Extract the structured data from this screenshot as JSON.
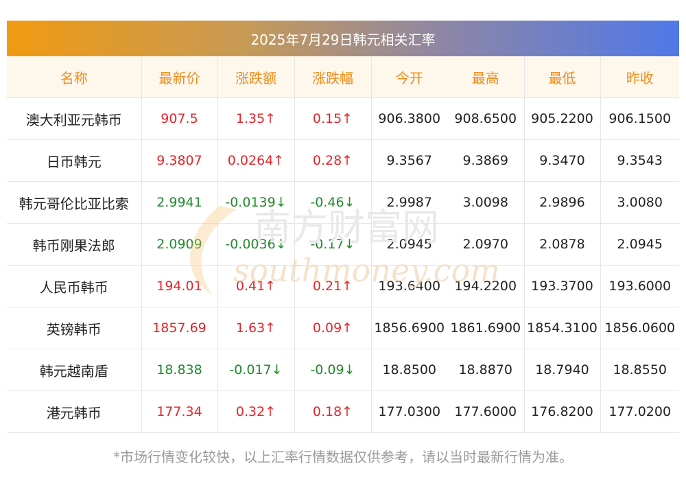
{
  "title": "2025年7月29日韩元相关汇率",
  "columns": [
    "名称",
    "最新价",
    "涨跌额",
    "涨跌幅",
    "今开",
    "最高",
    "最低",
    "昨收"
  ],
  "rows": [
    {
      "name": "澳大利亚元韩币",
      "latest": "907.5",
      "change": "1.35↑",
      "pct": "0.15↑",
      "open": "906.3800",
      "high": "908.6500",
      "low": "905.2200",
      "prev": "906.1500",
      "dir": "up"
    },
    {
      "name": "日币韩元",
      "latest": "9.3807",
      "change": "0.0264↑",
      "pct": "0.28↑",
      "open": "9.3567",
      "high": "9.3869",
      "low": "9.3470",
      "prev": "9.3543",
      "dir": "up"
    },
    {
      "name": "韩元哥伦比亚比索",
      "latest": "2.9941",
      "change": "-0.0139↓",
      "pct": "-0.46↓",
      "open": "2.9987",
      "high": "3.0098",
      "low": "2.9896",
      "prev": "3.0080",
      "dir": "down"
    },
    {
      "name": "韩币刚果法郎",
      "latest": "2.0909",
      "change": "-0.0036↓",
      "pct": "-0.17↓",
      "open": "2.0945",
      "high": "2.0970",
      "low": "2.0878",
      "prev": "2.0945",
      "dir": "down"
    },
    {
      "name": "人民币韩币",
      "latest": "194.01",
      "change": "0.41↑",
      "pct": "0.21↑",
      "open": "193.6400",
      "high": "194.2200",
      "low": "193.3700",
      "prev": "193.6000",
      "dir": "up"
    },
    {
      "name": "英镑韩币",
      "latest": "1857.69",
      "change": "1.63↑",
      "pct": "0.09↑",
      "open": "1856.6900",
      "high": "1861.6900",
      "low": "1854.3100",
      "prev": "1856.0600",
      "dir": "up"
    },
    {
      "name": "韩元越南盾",
      "latest": "18.838",
      "change": "-0.017↓",
      "pct": "-0.09↓",
      "open": "18.8500",
      "high": "18.8870",
      "low": "18.7940",
      "prev": "18.8550",
      "dir": "down"
    },
    {
      "name": "港元韩币",
      "latest": "177.34",
      "change": "0.32↑",
      "pct": "0.18↑",
      "open": "177.0300",
      "high": "177.6000",
      "low": "176.8200",
      "prev": "177.0200",
      "dir": "up"
    }
  ],
  "watermark": {
    "cn": "南方财富网",
    "en": "southmoney.com"
  },
  "footnote": "*市场行情变化较快，以上汇率行情数据仅供参考，请以当时最新行情为准。",
  "colors": {
    "up": "#e8242a",
    "down": "#1f8a2a",
    "header_text": "#f08c1a",
    "header_bg": "#fdf7ec"
  }
}
